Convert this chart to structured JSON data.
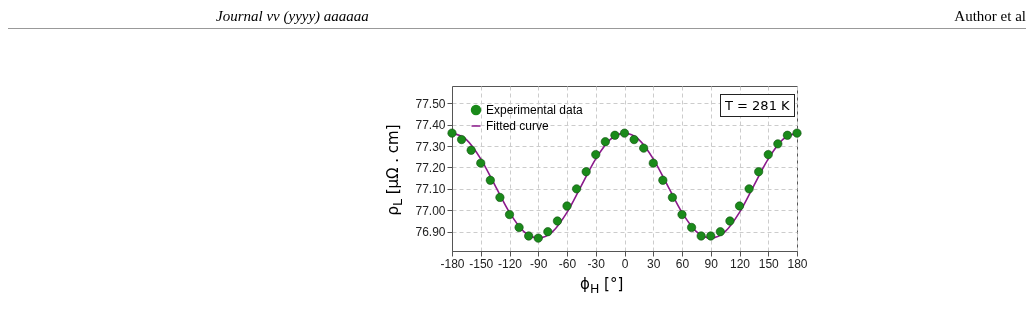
{
  "chart_data": {
    "type": "scatter",
    "xlabel": "ϕ$_{H}$ [°]",
    "ylabel": "ρ$_{L}$ [µΩ . cm]",
    "annotations": [
      "Journal vv (yyyy) aaaaaa",
      "Author et al",
      "T = 281 K"
    ],
    "series": [
      {
        "name": "Experimental data",
        "type": "scatter",
        "color": "#1a8a1a",
        "x": [
          -180,
          -170,
          -160,
          -150,
          -140,
          -130,
          -120,
          -110,
          -100,
          -90,
          -80,
          -70,
          -60,
          -50,
          -40,
          -30,
          -20,
          -10,
          0,
          10,
          20,
          30,
          40,
          50,
          60,
          70,
          80,
          90,
          100,
          110,
          120,
          130,
          140,
          150,
          160,
          170,
          180
        ],
        "values": [
          77.36,
          77.33,
          77.28,
          77.22,
          77.14,
          77.06,
          76.98,
          76.92,
          76.88,
          76.87,
          76.9,
          76.95,
          77.02,
          77.1,
          77.18,
          77.26,
          77.32,
          77.35,
          77.36,
          77.33,
          77.29,
          77.22,
          77.14,
          77.06,
          76.98,
          76.92,
          76.88,
          76.88,
          76.9,
          76.95,
          77.02,
          77.1,
          77.18,
          77.26,
          77.31,
          77.35,
          77.36
        ]
      },
      {
        "name": "Fitted curve",
        "type": "line",
        "marker": "none",
        "color": "#8b1a8b",
        "x": [
          -180,
          -165,
          -150,
          -135,
          -120,
          -105,
          -90,
          -75,
          -60,
          -45,
          -30,
          -15,
          0,
          15,
          30,
          45,
          60,
          75,
          90,
          105,
          120,
          135,
          150,
          165,
          180
        ],
        "values": [
          77.36,
          77.33,
          77.24,
          77.115,
          76.99,
          76.9,
          76.87,
          76.9,
          76.99,
          77.115,
          77.24,
          77.33,
          77.36,
          77.33,
          77.24,
          77.115,
          76.99,
          76.9,
          76.87,
          76.9,
          76.99,
          77.115,
          77.24,
          77.33,
          77.36
        ]
      }
    ],
    "xlim": [
      -180,
      180
    ],
    "xticks": [
      -180,
      -150,
      -120,
      -90,
      -60,
      -30,
      0,
      30,
      60,
      90,
      120,
      150,
      180
    ],
    "ylim": [
      76.81,
      77.58
    ],
    "yticks": [
      {
        "value": 76.9,
        "label": "76.90"
      },
      {
        "value": 77.0,
        "label": "77.00"
      },
      {
        "value": 77.1,
        "label": "77.10"
      },
      {
        "value": 77.2,
        "label": "77.20"
      },
      {
        "value": 77.3,
        "label": "77.30"
      },
      {
        "value": 77.4,
        "label": "77.40"
      },
      {
        "value": 77.5,
        "label": "77.50"
      }
    ],
    "grid": true,
    "legend": "top left",
    "marker": "circle",
    "line_style": "solid"
  }
}
